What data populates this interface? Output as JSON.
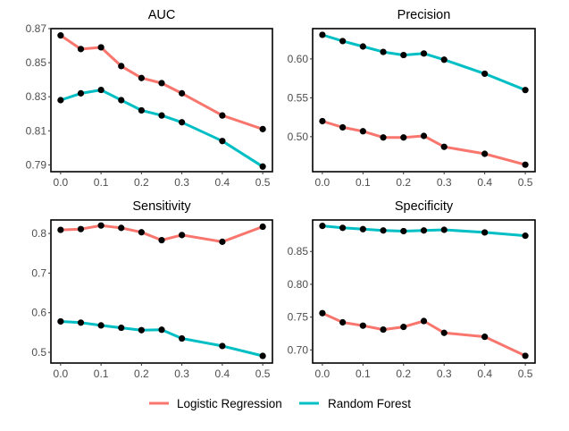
{
  "chart_data": [
    {
      "type": "line",
      "title": "AUC",
      "x": [
        0.0,
        0.05,
        0.1,
        0.15,
        0.2,
        0.25,
        0.3,
        0.4,
        0.5
      ],
      "xticks": [
        "0.0",
        "0.1",
        "0.2",
        "0.3",
        "0.4",
        "0.5"
      ],
      "xlim": [
        -0.024,
        0.524
      ],
      "yticks": [
        "0.79",
        "0.81",
        "0.83",
        "0.85",
        "0.87"
      ],
      "ylim": [
        0.786,
        0.87
      ],
      "series": [
        {
          "name": "Logistic Regression",
          "values": [
            0.866,
            0.858,
            0.859,
            0.848,
            0.841,
            0.838,
            0.832,
            0.819,
            0.811
          ]
        },
        {
          "name": "Random Forest",
          "values": [
            0.828,
            0.832,
            0.834,
            0.828,
            0.822,
            0.819,
            0.815,
            0.804,
            0.789
          ]
        }
      ]
    },
    {
      "type": "line",
      "title": "Precision",
      "x": [
        0.0,
        0.05,
        0.1,
        0.15,
        0.2,
        0.25,
        0.3,
        0.4,
        0.5
      ],
      "xticks": [
        "0.0",
        "0.1",
        "0.2",
        "0.3",
        "0.4",
        "0.5"
      ],
      "xlim": [
        -0.024,
        0.524
      ],
      "yticks": [
        "0.50",
        "0.55",
        "0.60"
      ],
      "ylim": [
        0.455,
        0.639
      ],
      "series": [
        {
          "name": "Logistic Regression",
          "values": [
            0.52,
            0.512,
            0.507,
            0.499,
            0.499,
            0.501,
            0.487,
            0.478,
            0.464
          ]
        },
        {
          "name": "Random Forest",
          "values": [
            0.631,
            0.623,
            0.616,
            0.609,
            0.605,
            0.607,
            0.599,
            0.581,
            0.56
          ]
        }
      ]
    },
    {
      "type": "line",
      "title": "Sensitivity",
      "x": [
        0.0,
        0.05,
        0.1,
        0.15,
        0.2,
        0.25,
        0.3,
        0.4,
        0.5
      ],
      "xticks": [
        "0.0",
        "0.1",
        "0.2",
        "0.3",
        "0.4",
        "0.5"
      ],
      "xlim": [
        -0.024,
        0.524
      ],
      "yticks": [
        "0.5",
        "0.6",
        "0.7",
        "0.8"
      ],
      "ylim": [
        0.473,
        0.834
      ],
      "series": [
        {
          "name": "Logistic Regression",
          "values": [
            0.809,
            0.811,
            0.82,
            0.814,
            0.803,
            0.783,
            0.796,
            0.779,
            0.817
          ]
        },
        {
          "name": "Random Forest",
          "values": [
            0.578,
            0.575,
            0.568,
            0.562,
            0.556,
            0.557,
            0.535,
            0.516,
            0.491
          ]
        }
      ]
    },
    {
      "type": "line",
      "title": "Specificity",
      "x": [
        0.0,
        0.05,
        0.1,
        0.15,
        0.2,
        0.25,
        0.3,
        0.4,
        0.5
      ],
      "xticks": [
        "0.0",
        "0.1",
        "0.2",
        "0.3",
        "0.4",
        "0.5"
      ],
      "xlim": [
        -0.024,
        0.524
      ],
      "yticks": [
        "0.70",
        "0.75",
        "0.80",
        "0.85"
      ],
      "ylim": [
        0.68,
        0.898
      ],
      "series": [
        {
          "name": "Logistic Regression",
          "values": [
            0.756,
            0.742,
            0.737,
            0.731,
            0.735,
            0.744,
            0.726,
            0.72,
            0.691
          ]
        },
        {
          "name": "Random Forest",
          "values": [
            0.889,
            0.886,
            0.884,
            0.882,
            0.881,
            0.882,
            0.883,
            0.879,
            0.874
          ]
        }
      ]
    }
  ],
  "legend": {
    "position": "bottom",
    "items": [
      {
        "label": "Logistic Regression",
        "color": "#F8766D"
      },
      {
        "label": "Random Forest",
        "color": "#00BFC4"
      }
    ]
  },
  "colors": {
    "point": "#000000",
    "axis": "#000000",
    "tick_text": "#4d4d4d"
  }
}
